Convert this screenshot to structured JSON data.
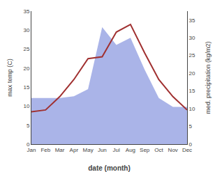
{
  "chart_data": {
    "type": "line",
    "categories": [
      "Jan",
      "Feb",
      "Mar",
      "Apr",
      "May",
      "Jun",
      "Jul",
      "Aug",
      "Sep",
      "Oct",
      "Nov",
      "Dec"
    ],
    "series": [
      {
        "type": "area",
        "axis": "y2",
        "color": "#aab4e8",
        "values": [
          13.0,
          13.0,
          13.0,
          13.5,
          15.5,
          33.0,
          28.0,
          30.0,
          21.0,
          13.0,
          10.5,
          10.5
        ]
      },
      {
        "type": "line",
        "color": "#a03030",
        "values": [
          8.5,
          9.0,
          12.5,
          17.0,
          22.5,
          23.0,
          29.5,
          31.5,
          24.0,
          17.0,
          12.5,
          9.0
        ]
      }
    ],
    "xlabel": "date (month)",
    "ylabel": "max temp (C)",
    "y2label": "med. precipitation (kg/m2)",
    "ylim": [
      0,
      35
    ],
    "yticks": [
      0,
      5,
      10,
      15,
      20,
      25,
      30,
      35
    ],
    "y2lim": [
      0,
      37.5
    ],
    "y2ticks": [
      0,
      5,
      10,
      15,
      20,
      25,
      30,
      35
    ],
    "grid": false
  }
}
